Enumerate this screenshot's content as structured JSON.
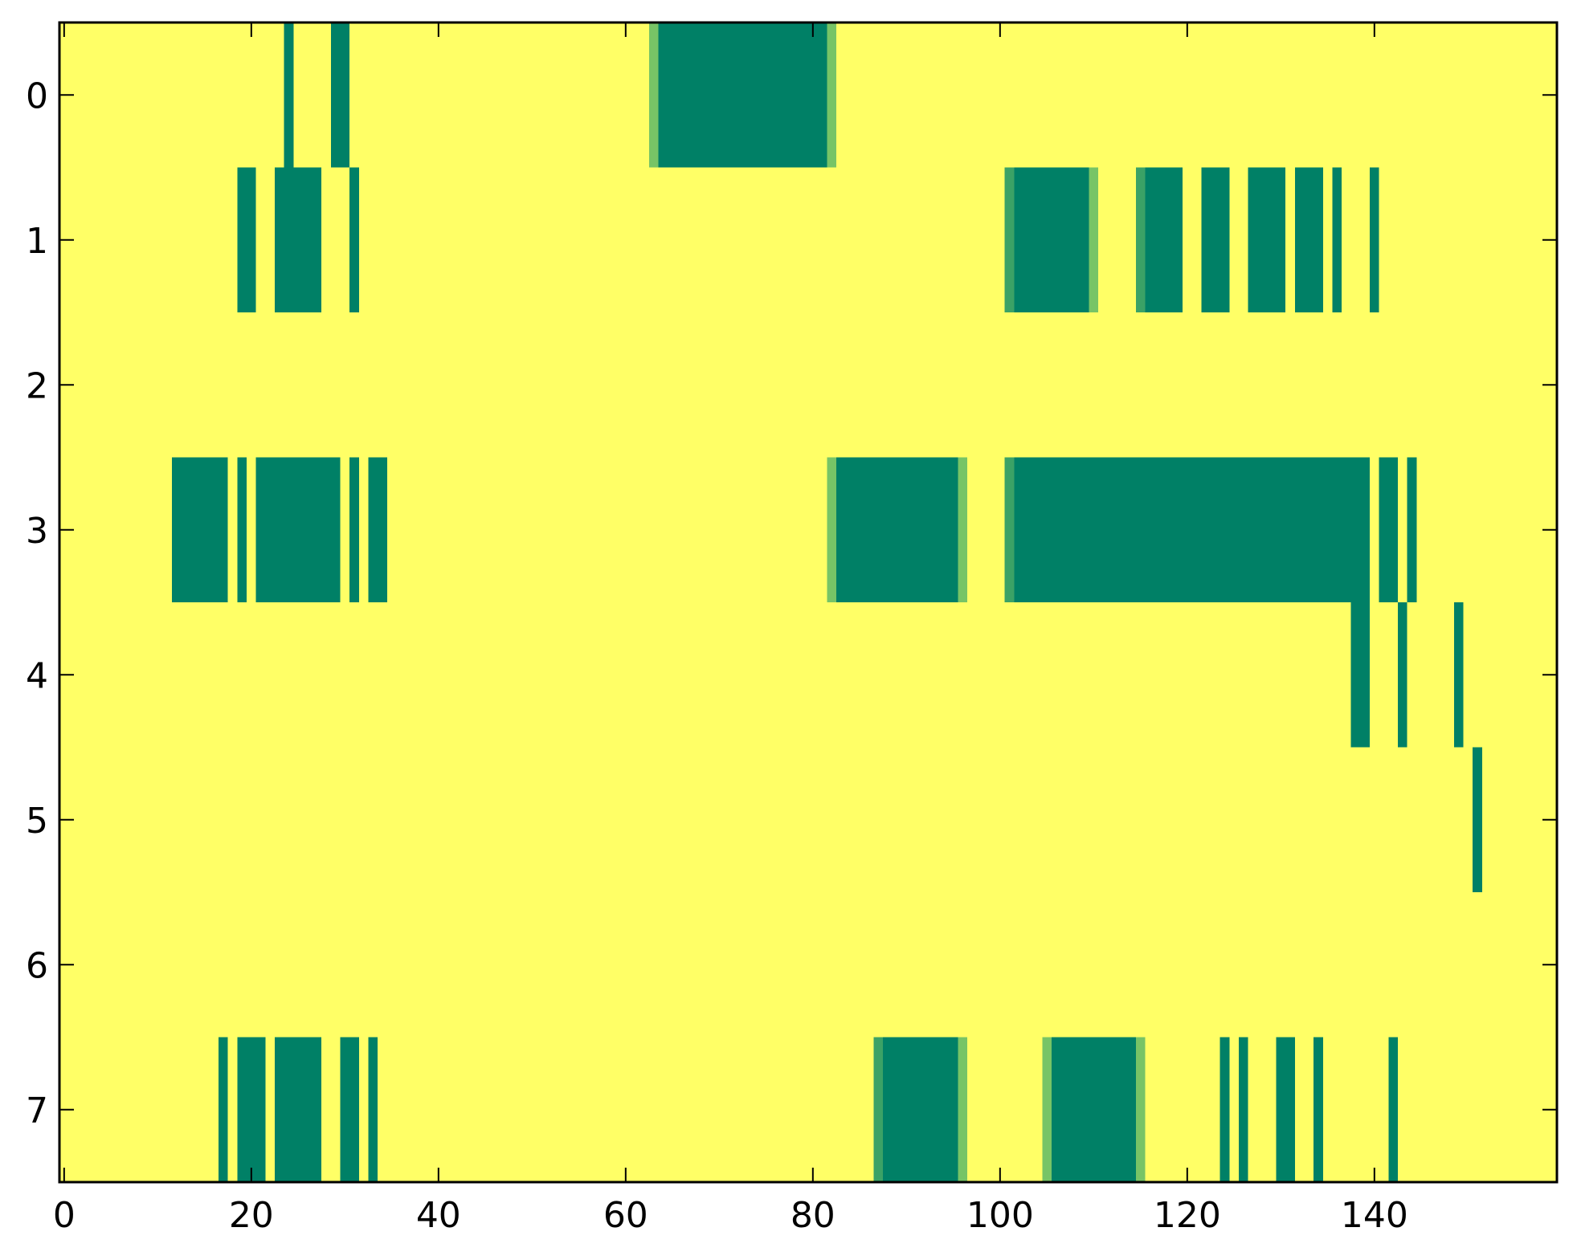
{
  "chart_data": {
    "type": "heatmap",
    "title": "",
    "xlabel": "",
    "ylabel": "",
    "xlim": [
      -0.5,
      159.5
    ],
    "ylim": [
      7.5,
      -0.5
    ],
    "x_ticks": [
      0,
      20,
      40,
      60,
      80,
      100,
      120,
      140
    ],
    "x_tick_labels": [
      "0",
      "20",
      "40",
      "60",
      "80",
      "100",
      "120",
      "140"
    ],
    "y_ticks": [
      0,
      1,
      2,
      3,
      4,
      5,
      6,
      7
    ],
    "y_tick_labels": [
      "0",
      "1",
      "2",
      "3",
      "4",
      "5",
      "6",
      "7"
    ],
    "background_value": 0,
    "colors": {
      "background": "#ffff66",
      "high": "#008066",
      "mid_light": "#77c466",
      "mid_dark": "#3ba266"
    },
    "rows": [
      {
        "row": 0,
        "segments": [
          {
            "x": [
              24,
              24
            ],
            "v": 1
          },
          {
            "x": [
              29,
              30
            ],
            "v": 1
          },
          {
            "x": [
              63,
              63
            ],
            "v": 0.6
          },
          {
            "x": [
              64,
              81
            ],
            "v": 1
          },
          {
            "x": [
              82,
              82
            ],
            "v": 0.6
          }
        ]
      },
      {
        "row": 1,
        "segments": [
          {
            "x": [
              19,
              20
            ],
            "v": 1
          },
          {
            "x": [
              23,
              27
            ],
            "v": 1
          },
          {
            "x": [
              31,
              31
            ],
            "v": 1
          },
          {
            "x": [
              101,
              101
            ],
            "v": 0.75
          },
          {
            "x": [
              102,
              109
            ],
            "v": 1
          },
          {
            "x": [
              110,
              110
            ],
            "v": 0.6
          },
          {
            "x": [
              115,
              115
            ],
            "v": 0.75
          },
          {
            "x": [
              116,
              119
            ],
            "v": 1
          },
          {
            "x": [
              122,
              124
            ],
            "v": 1
          },
          {
            "x": [
              127,
              130
            ],
            "v": 1
          },
          {
            "x": [
              132,
              134
            ],
            "v": 1
          },
          {
            "x": [
              136,
              136
            ],
            "v": 1
          },
          {
            "x": [
              140,
              140
            ],
            "v": 1
          }
        ]
      },
      {
        "row": 2,
        "segments": []
      },
      {
        "row": 3,
        "segments": [
          {
            "x": [
              12,
              17
            ],
            "v": 1
          },
          {
            "x": [
              19,
              19
            ],
            "v": 1
          },
          {
            "x": [
              21,
              29
            ],
            "v": 1
          },
          {
            "x": [
              31,
              31
            ],
            "v": 1
          },
          {
            "x": [
              33,
              34
            ],
            "v": 1
          },
          {
            "x": [
              82,
              82
            ],
            "v": 0.6
          },
          {
            "x": [
              83,
              95
            ],
            "v": 1
          },
          {
            "x": [
              96,
              96
            ],
            "v": 0.6
          },
          {
            "x": [
              101,
              101
            ],
            "v": 0.75
          },
          {
            "x": [
              102,
              139
            ],
            "v": 1
          },
          {
            "x": [
              141,
              142
            ],
            "v": 1
          },
          {
            "x": [
              144,
              144
            ],
            "v": 1
          }
        ]
      },
      {
        "row": 4,
        "segments": [
          {
            "x": [
              138,
              139
            ],
            "v": 1
          },
          {
            "x": [
              143,
              143
            ],
            "v": 1
          },
          {
            "x": [
              149,
              149
            ],
            "v": 1
          }
        ]
      },
      {
        "row": 5,
        "segments": [
          {
            "x": [
              151,
              151
            ],
            "v": 1
          }
        ]
      },
      {
        "row": 6,
        "segments": []
      },
      {
        "row": 7,
        "segments": [
          {
            "x": [
              17,
              17
            ],
            "v": 1
          },
          {
            "x": [
              19,
              21
            ],
            "v": 1
          },
          {
            "x": [
              23,
              27
            ],
            "v": 1
          },
          {
            "x": [
              30,
              31
            ],
            "v": 1
          },
          {
            "x": [
              33,
              33
            ],
            "v": 1
          },
          {
            "x": [
              87,
              87
            ],
            "v": 0.75
          },
          {
            "x": [
              88,
              95
            ],
            "v": 1
          },
          {
            "x": [
              96,
              96
            ],
            "v": 0.6
          },
          {
            "x": [
              105,
              105
            ],
            "v": 0.4
          },
          {
            "x": [
              106,
              114
            ],
            "v": 1
          },
          {
            "x": [
              115,
              115
            ],
            "v": 0.6
          },
          {
            "x": [
              124,
              124
            ],
            "v": 1
          },
          {
            "x": [
              126,
              126
            ],
            "v": 1
          },
          {
            "x": [
              130,
              131
            ],
            "v": 1
          },
          {
            "x": [
              134,
              134
            ],
            "v": 1
          },
          {
            "x": [
              142,
              142
            ],
            "v": 1
          }
        ]
      }
    ]
  }
}
